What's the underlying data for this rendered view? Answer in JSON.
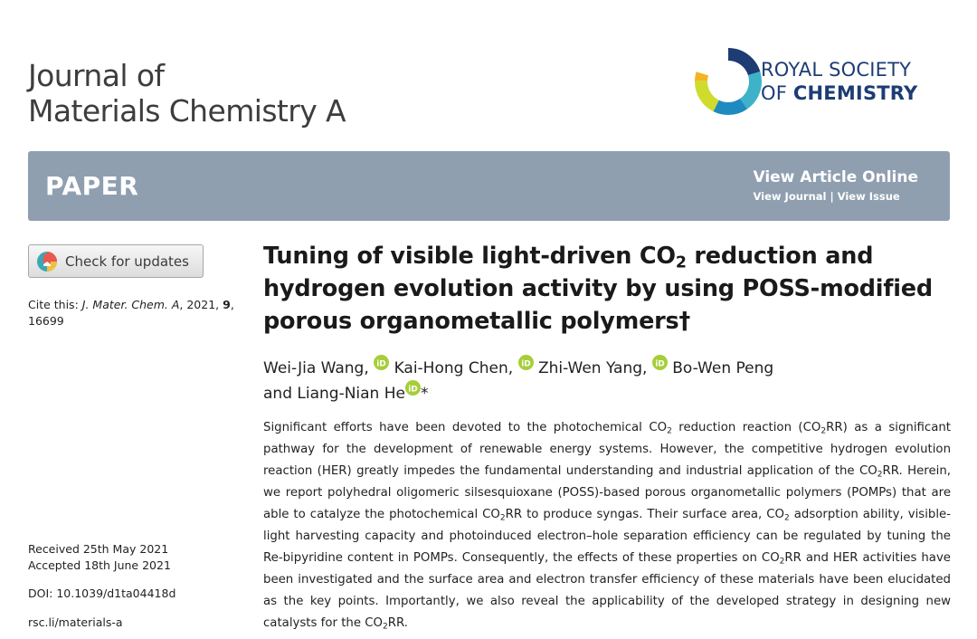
{
  "journal": {
    "line1": "Journal of",
    "line2": "Materials Chemistry A"
  },
  "publisher": {
    "line1": "ROYAL SOCIETY",
    "line2_prefix": "OF",
    "line2_bold": "CHEMISTRY"
  },
  "banner": {
    "type": "PAPER",
    "view_online": "View Article Online",
    "view_journal": "View Journal",
    "separator": "|",
    "view_issue": "View Issue",
    "color": "#8f9fb0"
  },
  "check_updates": {
    "label": "Check for updates"
  },
  "cite": {
    "prefix": "Cite this:",
    "journal": "J. Mater. Chem. A",
    "year": ", 2021,",
    "volume": "9",
    "pages": ", 16699"
  },
  "dates": {
    "received": "Received 25th May 2021",
    "accepted": "Accepted 18th June 2021"
  },
  "doi": "DOI: 10.1039/d1ta04418d",
  "link": "rsc.li/materials-a",
  "title": {
    "p1": "Tuning of visible light-driven CO",
    "sub": "2",
    "p2": " reduction and hydrogen evolution activity by using POSS-modified porous organometallic polymers",
    "dagger": "†"
  },
  "authors": [
    {
      "name": "Wei-Jia Wang",
      "sep": ", "
    },
    {
      "name": "Kai-Hong Chen",
      "sep": ", "
    },
    {
      "name": "Zhi-Wen Yang",
      "sep": ", "
    },
    {
      "name": "Bo-Wen Peng",
      "sep": ""
    }
  ],
  "author_last": {
    "prefix": "and",
    "name": "Liang-Nian He",
    "mark": "*"
  },
  "abstract": {
    "sub": "2",
    "r": "R",
    "t1": "Significant efforts have been devoted to the photochemical CO",
    "t2": " reduction reaction (CO",
    "t3": "RR) as a significant pathway for the development of renewable energy systems. However, the competitive hydrogen evolution reaction (HER) greatly impedes the fundamental understanding and industrial application of the CO",
    "t4": "RR. Herein, we report polyhedral oligomeric silsesquioxane (POSS)-based porous organometallic polymers (POMPs) that are able to catalyze the photochemical CO",
    "t5": "RR to produce syngas. Their surface area, CO",
    "t6": " adsorption ability, visible-light harvesting capacity and photoinduced electron–hole separation efficiency can be regulated by tuning the Re-bipyridine content in POMPs. Consequently, the effects of these properties on CO",
    "t7": "RR and HER activities have been investigated and the surface area and electron transfer efficiency of these materials have been elucidated as the key points. Importantly, we also reveal the applicability of the developed strategy in designing new catalysts for the CO",
    "t8": "RR."
  },
  "icons": {
    "orcid": "orcid-icon",
    "rsc": "rsc-logo-icon",
    "crossmark": "crossmark-icon"
  },
  "colors": {
    "orcid": "#a6ce39",
    "rsc_text": "#1d3c74"
  }
}
